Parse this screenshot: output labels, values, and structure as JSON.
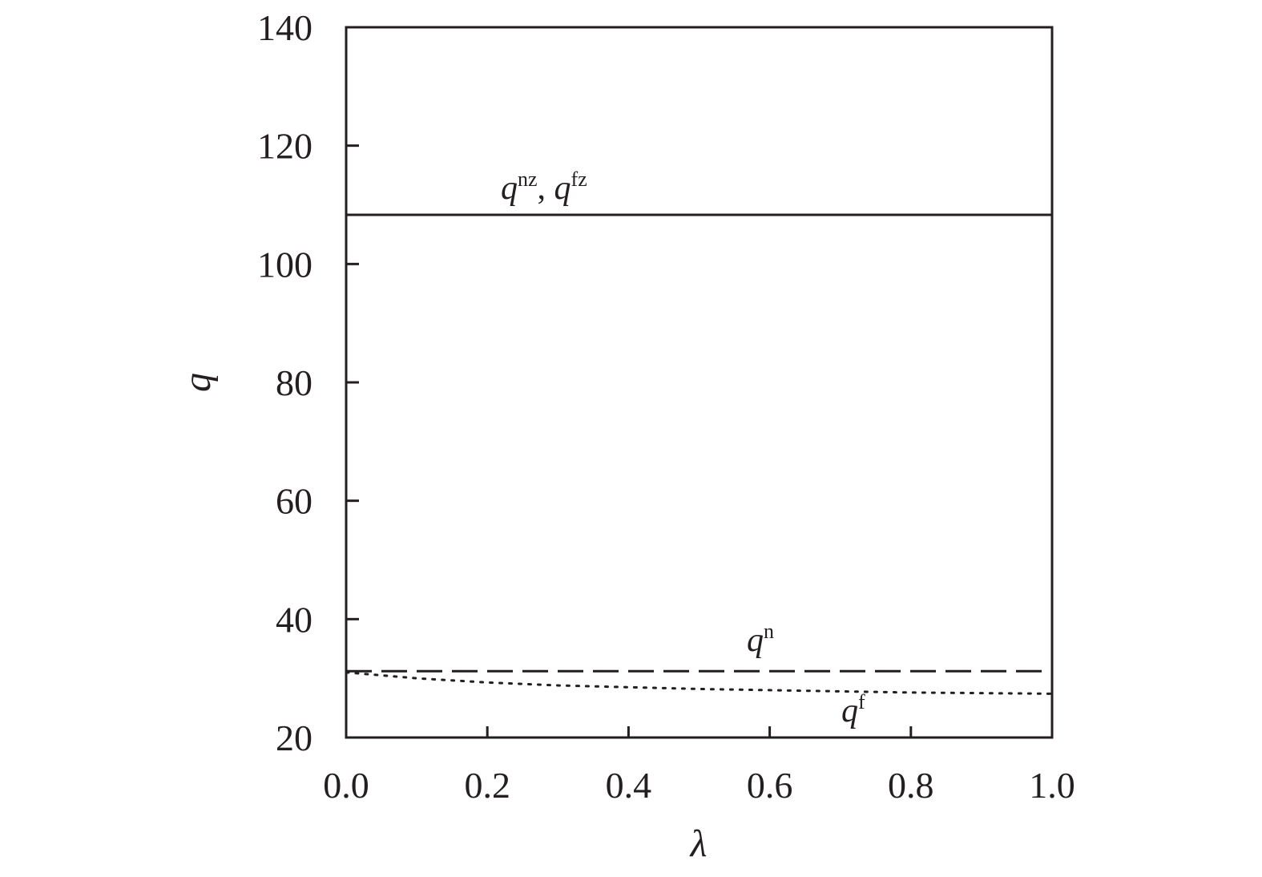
{
  "chart_data": {
    "type": "line",
    "title": "",
    "xlabel": "λ",
    "ylabel": "q",
    "xlim": [
      0.0,
      1.0
    ],
    "ylim": [
      20,
      140
    ],
    "x_ticks": [
      "0.0",
      "0.2",
      "0.4",
      "0.6",
      "0.8",
      "1.0"
    ],
    "y_ticks": [
      "20",
      "40",
      "60",
      "80",
      "100",
      "120",
      "140"
    ],
    "grid": false,
    "legend": "none",
    "series": [
      {
        "label_base": "q",
        "label_sup": "nz",
        "label_sep": ", ",
        "label_base2": "q",
        "label_sup2": "fz",
        "style": "solid",
        "x": [
          0.0,
          1.0
        ],
        "y": [
          108.3,
          108.3
        ]
      },
      {
        "label_base": "q",
        "label_sup": "n",
        "style": "dashed",
        "x": [
          0.0,
          1.0
        ],
        "y": [
          31.2,
          31.2
        ]
      },
      {
        "label_base": "q",
        "label_sup": "f",
        "style": "dotted",
        "x": [
          0.0,
          0.1,
          0.2,
          0.3,
          0.4,
          0.5,
          0.6,
          0.7,
          0.8,
          0.9,
          1.0
        ],
        "y": [
          31.0,
          30.0,
          29.3,
          28.8,
          28.5,
          28.2,
          28.0,
          27.8,
          27.6,
          27.5,
          27.4
        ]
      }
    ],
    "colors": {
      "ink": "#231f20"
    }
  }
}
